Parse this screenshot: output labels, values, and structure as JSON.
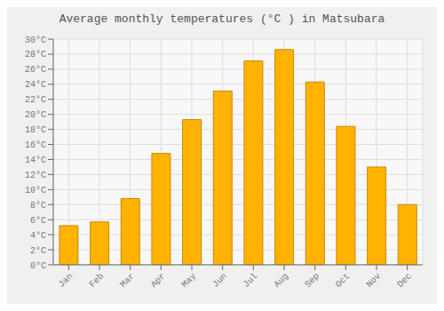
{
  "chart_data": {
    "type": "bar",
    "title": "Average monthly temperatures (°C ) in Matsubara",
    "categories": [
      "Jan",
      "Feb",
      "Mar",
      "Apr",
      "May",
      "Jun",
      "Jul",
      "Aug",
      "Sep",
      "Oct",
      "Nov",
      "Dec"
    ],
    "values": [
      5.2,
      5.7,
      8.8,
      14.8,
      19.3,
      23.1,
      27.1,
      28.6,
      24.3,
      18.4,
      13.0,
      8.0
    ],
    "color": "#FFB300",
    "ylim": [
      0,
      30
    ],
    "yticks": [
      {
        "value": 0,
        "label": "0°C"
      },
      {
        "value": 2,
        "label": "2°C"
      },
      {
        "value": 4,
        "label": "4°C"
      },
      {
        "value": 6,
        "label": "6°C"
      },
      {
        "value": 8,
        "label": "8°C"
      },
      {
        "value": 10,
        "label": "10°C"
      },
      {
        "value": 12,
        "label": "12°C"
      },
      {
        "value": 14,
        "label": "14°C"
      },
      {
        "value": 16,
        "label": "16°C"
      },
      {
        "value": 18,
        "label": "18°C"
      },
      {
        "value": 20,
        "label": "20°C"
      },
      {
        "value": 22,
        "label": "22°C"
      },
      {
        "value": 24,
        "label": "24°C"
      },
      {
        "value": 26,
        "label": "26°C"
      },
      {
        "value": 28,
        "label": "28°C"
      },
      {
        "value": 30,
        "label": "30°C"
      }
    ],
    "grid": true
  }
}
